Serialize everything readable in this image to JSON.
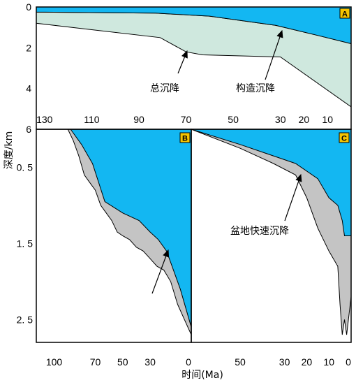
{
  "figure": {
    "y_axis_title": "深度/km",
    "x_axis_title": "时间(Ma)"
  },
  "colors": {
    "water": "#13b7f2",
    "total_subsidence": "#cfe8de",
    "rapid_subsidence": "#c4c4c4",
    "label_box": "#f5c400",
    "outline": "#000000"
  },
  "chart_data": [
    {
      "id": "A",
      "type": "area",
      "panel_label": "A",
      "x_ticks": [
        130,
        110,
        90,
        70,
        50,
        30,
        20,
        10
      ],
      "x_tick_labels": [
        "130",
        "110",
        "90",
        "70",
        "50",
        "30",
        "20",
        "10"
      ],
      "y_ticks": [
        0,
        2,
        4,
        6
      ],
      "y_tick_labels": [
        "0",
        "2",
        "4",
        "6"
      ],
      "ylim": [
        0,
        6
      ],
      "y_inverted": true,
      "series": [
        {
          "role": "water",
          "x": [
            133.5,
            83,
            60,
            32,
            14,
            0
          ],
          "values": [
            0.25,
            0.3,
            0.45,
            0.9,
            1.4,
            1.8
          ]
        },
        {
          "role": "tectonic",
          "x": [
            133.5,
            81,
            70,
            63,
            30,
            0
          ],
          "values": [
            0.8,
            1.5,
            2.2,
            2.35,
            2.45,
            4.9
          ]
        }
      ],
      "annotations": [
        {
          "text": "总沉降",
          "x": 70,
          "y": 2.2
        },
        {
          "text": "构造沉降",
          "x": 31,
          "y": 1.2
        }
      ]
    },
    {
      "id": "B",
      "type": "area",
      "panel_label": "B",
      "x_ticks": [
        100,
        70,
        50,
        30,
        0
      ],
      "x_tick_labels": [
        "100",
        "70",
        "50",
        "30",
        "0"
      ],
      "y_ticks": [
        0.5,
        1.5,
        2.5
      ],
      "y_tick_labels": [
        "0. 5",
        "1. 5",
        "2. 5"
      ],
      "ylim": [
        0,
        2.8
      ],
      "y_inverted": true,
      "series": [
        {
          "role": "water",
          "x": [
            88,
            80,
            72,
            63,
            50,
            38,
            30,
            24,
            18,
            14,
            8,
            0
          ],
          "values": [
            0,
            0.2,
            0.45,
            0.95,
            1.1,
            1.2,
            1.35,
            1.45,
            1.6,
            1.8,
            2.1,
            2.6
          ]
        },
        {
          "role": "total",
          "x": [
            90,
            86,
            82,
            78,
            74,
            70,
            66,
            62,
            58,
            54,
            50,
            45,
            40,
            35,
            30,
            25,
            20,
            15,
            10,
            5,
            0
          ],
          "values": [
            0,
            0.15,
            0.35,
            0.6,
            0.7,
            0.8,
            1.0,
            1.1,
            1.2,
            1.35,
            1.4,
            1.45,
            1.55,
            1.6,
            1.7,
            1.8,
            1.85,
            2.0,
            2.3,
            2.5,
            2.7
          ]
        }
      ],
      "annotation_arrow": {
        "from": [
          33,
          2.35
        ],
        "to": [
          18,
          1.6
        ]
      }
    },
    {
      "id": "C",
      "type": "area",
      "panel_label": "C",
      "annotation": "盆地快速沉降",
      "x_ticks": [
        50,
        30,
        20,
        10,
        0
      ],
      "x_tick_labels": [
        "50",
        "30",
        "20",
        "10",
        "0"
      ],
      "ylim": [
        0,
        2.8
      ],
      "y_inverted": true,
      "series": [
        {
          "role": "water",
          "x": [
            72,
            50,
            35,
            25,
            15,
            10,
            6,
            4,
            3,
            0
          ],
          "values": [
            0,
            0.2,
            0.35,
            0.45,
            0.65,
            0.9,
            1.0,
            1.2,
            1.4,
            1.4
          ]
        },
        {
          "role": "total",
          "x": [
            72,
            50,
            35,
            25,
            20,
            15,
            10,
            6,
            5,
            4,
            3,
            2,
            0
          ],
          "values": [
            0,
            0.25,
            0.45,
            0.6,
            0.9,
            1.3,
            1.6,
            1.8,
            2.3,
            2.7,
            2.5,
            2.7,
            2.2
          ]
        }
      ],
      "annotation_arrow": {
        "from": [
          35,
          1.3
        ],
        "to": [
          21,
          0.7
        ]
      }
    }
  ]
}
